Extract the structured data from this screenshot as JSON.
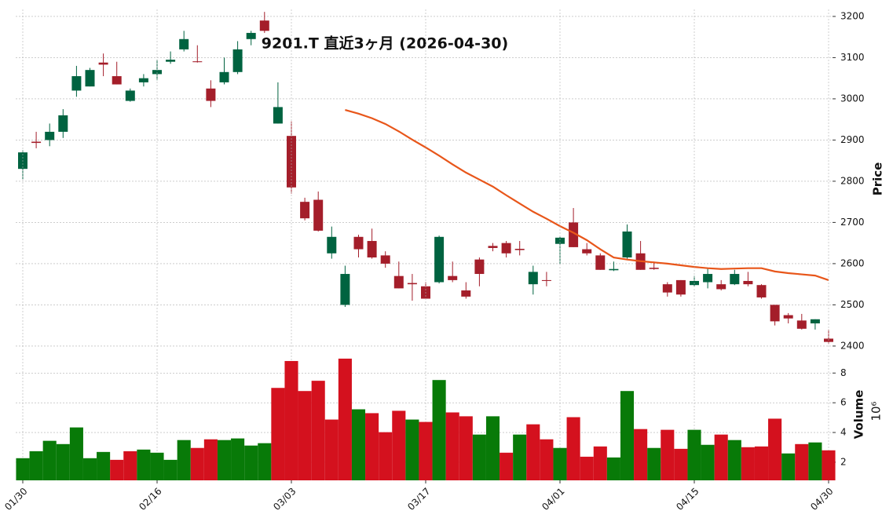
{
  "chart_data": [
    {
      "type": "candlestick",
      "title": "9201.T  直近3ヶ月  (2026-04-30)",
      "ylabel": "Price",
      "up_color": "#006340",
      "down_color": "#a41e2a",
      "open": [
        2830,
        2896,
        2900,
        2920,
        3020,
        3030,
        3088,
        3055,
        2995,
        3040,
        3060,
        3090,
        3120,
        3091,
        3025,
        3040,
        3065,
        3145,
        3190,
        2940,
        2910,
        2750,
        2755,
        2625,
        2500,
        2665,
        2655,
        2620,
        2570,
        2553,
        2545,
        2555,
        2570,
        2535,
        2610,
        2643,
        2650,
        2636,
        2550,
        2560,
        2648,
        2700,
        2635,
        2620,
        2584,
        2615,
        2625,
        2590,
        2550,
        2560,
        2548,
        2555,
        2550,
        2550,
        2558,
        2548,
        2500,
        2475,
        2462,
        2455,
        2418
      ],
      "high": [
        2875,
        2920,
        2940,
        2975,
        3080,
        3075,
        3110,
        3090,
        3025,
        3060,
        3095,
        3115,
        3165,
        3130,
        3045,
        3100,
        3140,
        3165,
        3211,
        3040,
        2945,
        2760,
        2775,
        2690,
        2595,
        2670,
        2685,
        2630,
        2605,
        2575,
        2555,
        2668,
        2605,
        2555,
        2615,
        2650,
        2655,
        2655,
        2595,
        2580,
        2665,
        2735,
        2650,
        2625,
        2605,
        2695,
        2655,
        2605,
        2555,
        2560,
        2570,
        2590,
        2560,
        2585,
        2580,
        2550,
        2500,
        2480,
        2478,
        2465,
        2440
      ],
      "low": [
        2805,
        2880,
        2885,
        2905,
        3005,
        3030,
        3055,
        3035,
        2993,
        3030,
        3045,
        3085,
        3115,
        3088,
        2980,
        3035,
        3060,
        3130,
        3160,
        2940,
        2770,
        2705,
        2678,
        2612,
        2495,
        2615,
        2612,
        2590,
        2540,
        2510,
        2515,
        2552,
        2555,
        2515,
        2545,
        2630,
        2615,
        2620,
        2525,
        2545,
        2600,
        2640,
        2620,
        2585,
        2582,
        2612,
        2585,
        2585,
        2520,
        2520,
        2545,
        2540,
        2535,
        2548,
        2545,
        2515,
        2450,
        2455,
        2440,
        2440,
        2405
      ],
      "close": [
        2870,
        2893,
        2920,
        2960,
        3055,
        3070,
        3083,
        3035,
        3020,
        3050,
        3070,
        3095,
        3145,
        3089,
        2995,
        3065,
        3120,
        3160,
        3165,
        2980,
        2785,
        2710,
        2680,
        2665,
        2575,
        2635,
        2615,
        2600,
        2540,
        2550,
        2515,
        2665,
        2560,
        2520,
        2575,
        2638,
        2625,
        2633,
        2580,
        2558,
        2663,
        2640,
        2625,
        2585,
        2587,
        2678,
        2585,
        2587,
        2530,
        2525,
        2558,
        2575,
        2538,
        2575,
        2550,
        2518,
        2460,
        2467,
        2442,
        2465,
        2410
      ],
      "ma": {
        "color": "#e8561a",
        "values": [
          null,
          null,
          null,
          null,
          null,
          null,
          null,
          null,
          null,
          null,
          null,
          null,
          null,
          null,
          null,
          null,
          null,
          null,
          null,
          null,
          null,
          null,
          null,
          null,
          2973,
          2964,
          2953,
          2939,
          2921,
          2901,
          2882,
          2862,
          2841,
          2821,
          2804,
          2787,
          2766,
          2746,
          2726,
          2709,
          2691,
          2675,
          2657,
          2635,
          2615,
          2610,
          2606,
          2603,
          2600,
          2596,
          2592,
          2589,
          2587,
          2588,
          2589,
          2589,
          2581,
          2577,
          2574,
          2571,
          2560
        ]
      },
      "ylim": [
        2396,
        3217
      ],
      "yticks": [
        2400,
        2500,
        2600,
        2700,
        2800,
        2900,
        3000,
        3100,
        3200
      ],
      "grid": true
    },
    {
      "type": "bar",
      "ylabel": "Volume",
      "offset_text": "10⁶",
      "categories": [
        "01/30",
        null,
        null,
        null,
        null,
        null,
        null,
        null,
        null,
        null,
        "02/16",
        null,
        null,
        null,
        null,
        null,
        null,
        null,
        null,
        null,
        "03/03",
        null,
        null,
        null,
        null,
        null,
        null,
        null,
        null,
        null,
        "03/17",
        null,
        null,
        null,
        null,
        null,
        null,
        null,
        null,
        null,
        "04/01",
        null,
        null,
        null,
        null,
        null,
        null,
        null,
        null,
        null,
        "04/15",
        null,
        null,
        null,
        null,
        null,
        null,
        null,
        null,
        null,
        "04/30"
      ],
      "values": [
        2.27,
        2.74,
        3.44,
        3.22,
        4.34,
        2.27,
        2.69,
        2.16,
        2.74,
        2.85,
        2.64,
        2.16,
        3.49,
        2.96,
        3.54,
        3.49,
        3.6,
        3.12,
        3.28,
        7.0,
        8.81,
        6.79,
        7.48,
        4.87,
        8.97,
        5.56,
        5.3,
        4.02,
        5.46,
        4.87,
        4.71,
        7.53,
        5.35,
        5.09,
        3.86,
        5.09,
        2.64,
        3.86,
        4.55,
        3.54,
        2.96,
        5.03,
        2.37,
        3.06,
        2.32,
        6.79,
        4.23,
        2.96,
        4.18,
        2.9,
        4.18,
        3.17,
        3.86,
        3.49,
        3.01,
        3.06,
        4.93,
        2.59,
        3.22,
        3.33,
        2.8
      ],
      "colors": [
        "#087a08",
        "#087a08",
        "#087a08",
        "#087a08",
        "#087a08",
        "#087a08",
        "#087a08",
        "#d4111e",
        "#d4111e",
        "#087a08",
        "#087a08",
        "#087a08",
        "#087a08",
        "#d4111e",
        "#d4111e",
        "#087a08",
        "#087a08",
        "#087a08",
        "#087a08",
        "#d4111e",
        "#d4111e",
        "#d4111e",
        "#d4111e",
        "#d4111e",
        "#d4111e",
        "#087a08",
        "#d4111e",
        "#d4111e",
        "#d4111e",
        "#087a08",
        "#d4111e",
        "#087a08",
        "#d4111e",
        "#d4111e",
        "#087a08",
        "#087a08",
        "#d4111e",
        "#087a08",
        "#d4111e",
        "#d4111e",
        "#087a08",
        "#d4111e",
        "#d4111e",
        "#d4111e",
        "#087a08",
        "#087a08",
        "#d4111e",
        "#087a08",
        "#d4111e",
        "#d4111e",
        "#087a08",
        "#087a08",
        "#d4111e",
        "#087a08",
        "#d4111e",
        "#d4111e",
        "#d4111e",
        "#087a08",
        "#d4111e",
        "#087a08",
        "#d4111e"
      ],
      "ylim": [
        0.78,
        9.6
      ],
      "yticks": [
        2,
        4,
        6,
        8
      ],
      "grid": true
    }
  ]
}
